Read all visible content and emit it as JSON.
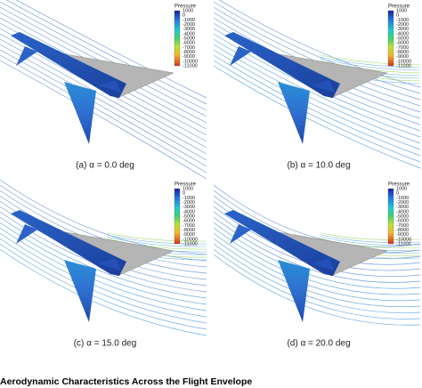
{
  "colorbar": {
    "title": "Pressure",
    "ticks": [
      1000,
      0,
      -1000,
      -2000,
      -3000,
      -4000,
      -5000,
      -6000,
      -7000,
      -8000,
      -9000,
      -10000,
      -11000
    ]
  },
  "panels": [
    {
      "caption": "(a) α = 0.0 deg"
    },
    {
      "caption": "(b) α = 10.0 deg"
    },
    {
      "caption": "(c) α = 15.0 deg"
    },
    {
      "caption": "(d) α = 20.0 deg"
    }
  ],
  "title": "Aerodynamic Characteristics Across the Flight Envelope"
}
